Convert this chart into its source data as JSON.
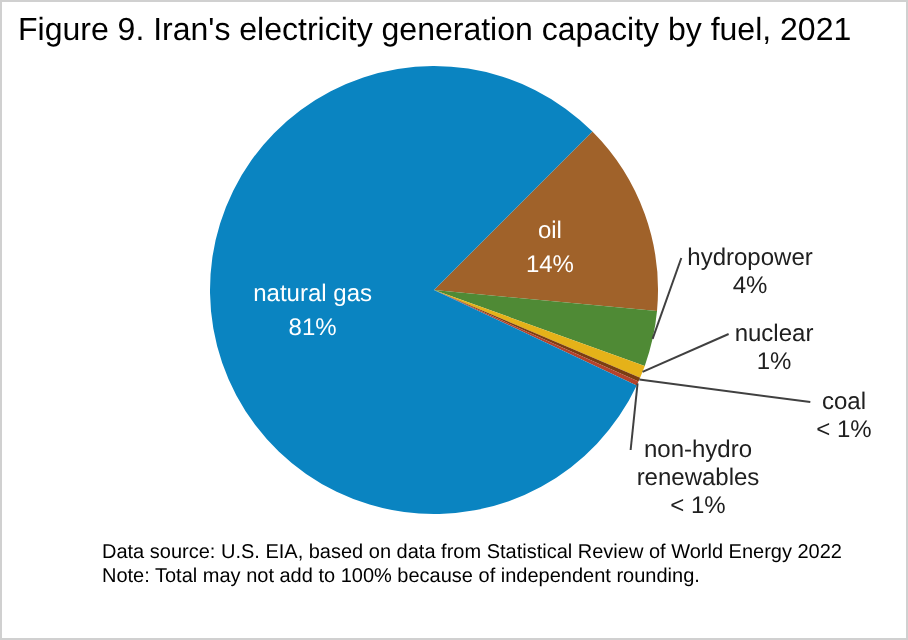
{
  "chart_data": {
    "type": "pie",
    "title": "Figure 9. Iran's electricity generation capacity by fuel, 2021",
    "categories": [
      "oil",
      "hydropower",
      "nuclear",
      "coal",
      "non-hydro renewables",
      "natural gas"
    ],
    "values": [
      14,
      4,
      0.9,
      0.3,
      0.3,
      80.5
    ],
    "value_labels": [
      "14%",
      "4%",
      "1%",
      "< 1%",
      "< 1%",
      "81%"
    ],
    "colors": [
      "#a0622a",
      "#4f8a35",
      "#e5b219",
      "#7a3d12",
      "#b5432c",
      "#0a84c1"
    ],
    "legend": false,
    "annotations": [
      "Data source: U.S. EIA, based on data from Statistical Review of World Energy 2022",
      "Note: Total may not add to 100% because of independent rounding."
    ]
  }
}
